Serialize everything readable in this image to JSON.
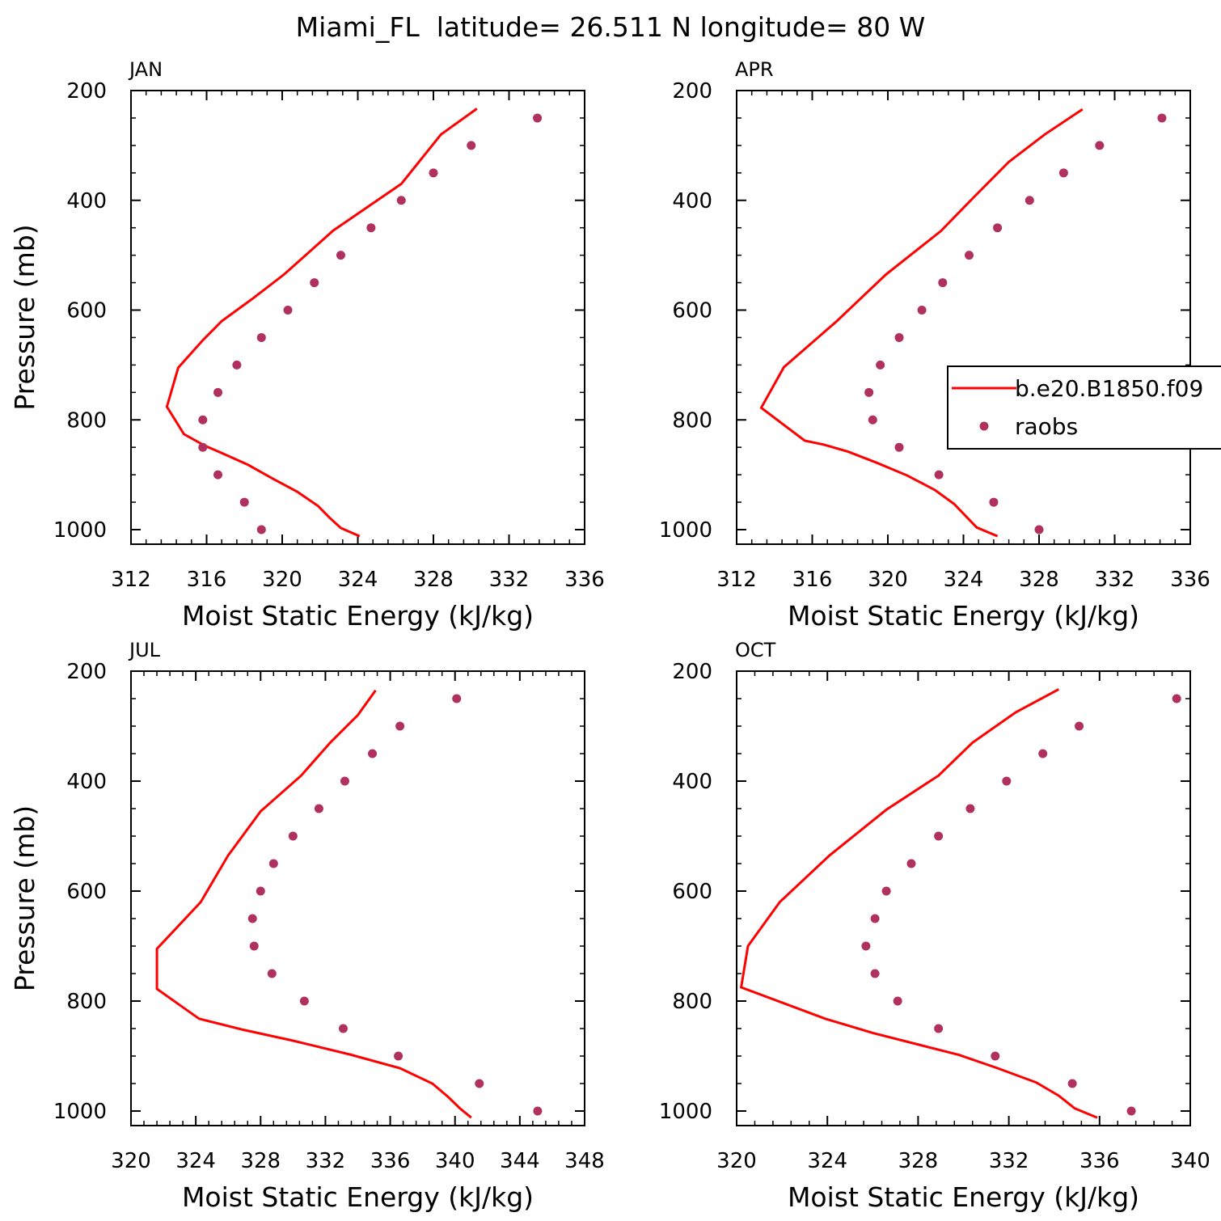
{
  "figure": {
    "title": "Miami_FL  latitude= 26.511 N longitude= 80 W"
  },
  "chart_data": [
    {
      "type": "line",
      "panel_label": "JAN",
      "xlabel": "Moist Static Energy (kJ/kg)",
      "ylabel": "Pressure (mb)",
      "xlim": [
        312,
        336
      ],
      "ylim": [
        1000,
        200
      ],
      "y_inverted": true,
      "xticks": [
        "312",
        "316",
        "320",
        "324",
        "328",
        "332",
        "336"
      ],
      "yticks": [
        "200",
        "400",
        "600",
        "800",
        "1000"
      ],
      "series": [
        {
          "name": "b.e20.B1850.f09",
          "style": "line",
          "color": "#ff0000",
          "points": [
            [
              324.1,
              1012
            ],
            [
              323.1,
              997
            ],
            [
              322.5,
              978
            ],
            [
              321.9,
              957
            ],
            [
              320.8,
              931
            ],
            [
              319.5,
              907
            ],
            [
              318.2,
              882
            ],
            [
              316.9,
              862
            ],
            [
              315.9,
              847
            ],
            [
              314.8,
              826
            ],
            [
              313.9,
              776
            ],
            [
              314.5,
              705
            ],
            [
              315.8,
              655
            ],
            [
              316.8,
              620
            ],
            [
              318.4,
              580
            ],
            [
              320.1,
              535
            ],
            [
              322.7,
              455
            ],
            [
              326.3,
              370
            ],
            [
              328.4,
              280
            ],
            [
              330.3,
              233
            ]
          ]
        },
        {
          "name": "raobs",
          "style": "markers",
          "color": "#b03060",
          "points": [
            [
              333.5,
              250
            ],
            [
              330,
              300
            ],
            [
              328,
              350
            ],
            [
              326.3,
              400
            ],
            [
              324.7,
              450
            ],
            [
              323.1,
              500
            ],
            [
              321.7,
              550
            ],
            [
              320.3,
              600
            ],
            [
              318.9,
              650
            ],
            [
              317.6,
              700
            ],
            [
              316.6,
              750
            ],
            [
              315.8,
              800
            ],
            [
              315.8,
              850
            ],
            [
              316.6,
              900
            ],
            [
              318,
              950
            ],
            [
              318.9,
              1000
            ]
          ]
        }
      ]
    },
    {
      "type": "line",
      "panel_label": "APR",
      "xlabel": "Moist Static Energy (kJ/kg)",
      "ylabel": "",
      "xlim": [
        312,
        336
      ],
      "ylim": [
        1000,
        200
      ],
      "y_inverted": true,
      "xticks": [
        "312",
        "316",
        "320",
        "324",
        "328",
        "332",
        "336"
      ],
      "yticks": [
        "200",
        "400",
        "600",
        "800",
        "1000"
      ],
      "legend": {
        "position": "right",
        "entries": [
          "b.e20.B1850.f09",
          "raobs"
        ]
      },
      "series": [
        {
          "name": "b.e20.B1850.f09",
          "style": "line",
          "color": "#ff0000",
          "points": [
            [
              325.8,
              1012
            ],
            [
              324.7,
              996
            ],
            [
              323.5,
              953
            ],
            [
              322.5,
              928
            ],
            [
              321,
              901
            ],
            [
              319.4,
              878
            ],
            [
              317.9,
              858
            ],
            [
              316.6,
              845
            ],
            [
              315.6,
              838
            ],
            [
              313.3,
              778
            ],
            [
              314.5,
              704
            ],
            [
              317.3,
              620
            ],
            [
              319.9,
              535
            ],
            [
              322.8,
              456
            ],
            [
              324.5,
              396
            ],
            [
              326.4,
              330
            ],
            [
              328.3,
              280
            ],
            [
              330.3,
              234
            ]
          ]
        },
        {
          "name": "raobs",
          "style": "markers",
          "color": "#b03060",
          "points": [
            [
              334.5,
              250
            ],
            [
              331.2,
              300
            ],
            [
              329.3,
              350
            ],
            [
              327.5,
              400
            ],
            [
              325.8,
              450
            ],
            [
              324.3,
              500
            ],
            [
              322.9,
              550
            ],
            [
              321.8,
              600
            ],
            [
              320.6,
              650
            ],
            [
              319.6,
              700
            ],
            [
              319,
              750
            ],
            [
              319.2,
              800
            ],
            [
              320.6,
              850
            ],
            [
              322.7,
              900
            ],
            [
              325.6,
              950
            ],
            [
              328,
              1000
            ]
          ]
        }
      ]
    },
    {
      "type": "line",
      "panel_label": "JUL",
      "xlabel": "Moist Static Energy (kJ/kg)",
      "ylabel": "Pressure (mb)",
      "xlim": [
        320,
        348
      ],
      "ylim": [
        1000,
        200
      ],
      "y_inverted": true,
      "xticks": [
        "320",
        "324",
        "328",
        "332",
        "336",
        "340",
        "344",
        "348"
      ],
      "yticks": [
        "200",
        "400",
        "600",
        "800",
        "1000"
      ],
      "series": [
        {
          "name": "b.e20.B1850.f09",
          "style": "line",
          "color": "#ff0000",
          "points": [
            [
              341,
              1012
            ],
            [
              340.3,
              995
            ],
            [
              339.6,
              975
            ],
            [
              338.6,
              950
            ],
            [
              336.6,
              922
            ],
            [
              333.5,
              897
            ],
            [
              330,
              872
            ],
            [
              326.9,
              852
            ],
            [
              324.2,
              832
            ],
            [
              321.6,
              778
            ],
            [
              321.6,
              705
            ],
            [
              324.3,
              620
            ],
            [
              326,
              535
            ],
            [
              328,
              455
            ],
            [
              330.5,
              390
            ],
            [
              332.3,
              330
            ],
            [
              334,
              280
            ],
            [
              335.1,
              235
            ]
          ]
        },
        {
          "name": "raobs",
          "style": "markers",
          "color": "#b03060",
          "points": [
            [
              340.1,
              250
            ],
            [
              336.6,
              300
            ],
            [
              334.9,
              350
            ],
            [
              333.2,
              400
            ],
            [
              331.6,
              450
            ],
            [
              330,
              500
            ],
            [
              328.8,
              550
            ],
            [
              328,
              600
            ],
            [
              327.5,
              650
            ],
            [
              327.6,
              700
            ],
            [
              328.7,
              750
            ],
            [
              330.7,
              800
            ],
            [
              333.1,
              850
            ],
            [
              336.5,
              900
            ],
            [
              341.5,
              950
            ],
            [
              345.1,
              1000
            ]
          ]
        }
      ]
    },
    {
      "type": "line",
      "panel_label": "OCT",
      "xlabel": "Moist Static Energy (kJ/kg)",
      "ylabel": "",
      "xlim": [
        320,
        340
      ],
      "ylim": [
        1000,
        200
      ],
      "y_inverted": true,
      "xticks": [
        "320",
        "324",
        "328",
        "332",
        "336",
        "340"
      ],
      "yticks": [
        "200",
        "400",
        "600",
        "800",
        "1000"
      ],
      "series": [
        {
          "name": "b.e20.B1850.f09",
          "style": "line",
          "color": "#ff0000",
          "points": [
            [
              335.9,
              1012
            ],
            [
              334.9,
              995
            ],
            [
              334.2,
              972
            ],
            [
              333.2,
              948
            ],
            [
              331.5,
              922
            ],
            [
              329.8,
              898
            ],
            [
              327.9,
              878
            ],
            [
              326,
              858
            ],
            [
              323.9,
              832
            ],
            [
              320.2,
              775
            ],
            [
              320.5,
              700
            ],
            [
              321.9,
              620
            ],
            [
              324.1,
              535
            ],
            [
              326.6,
              452
            ],
            [
              328.9,
              390
            ],
            [
              330.4,
              330
            ],
            [
              332.3,
              275
            ],
            [
              334.2,
              233
            ]
          ]
        },
        {
          "name": "raobs",
          "style": "markers",
          "color": "#b03060",
          "points": [
            [
              339.4,
              250
            ],
            [
              335.1,
              300
            ],
            [
              333.5,
              350
            ],
            [
              331.9,
              400
            ],
            [
              330.3,
              450
            ],
            [
              328.9,
              500
            ],
            [
              327.7,
              550
            ],
            [
              326.6,
              600
            ],
            [
              326.1,
              650
            ],
            [
              325.7,
              700
            ],
            [
              326.1,
              750
            ],
            [
              327.1,
              800
            ],
            [
              328.9,
              850
            ],
            [
              331.4,
              900
            ],
            [
              334.8,
              950
            ],
            [
              337.4,
              1000
            ]
          ]
        }
      ]
    }
  ]
}
